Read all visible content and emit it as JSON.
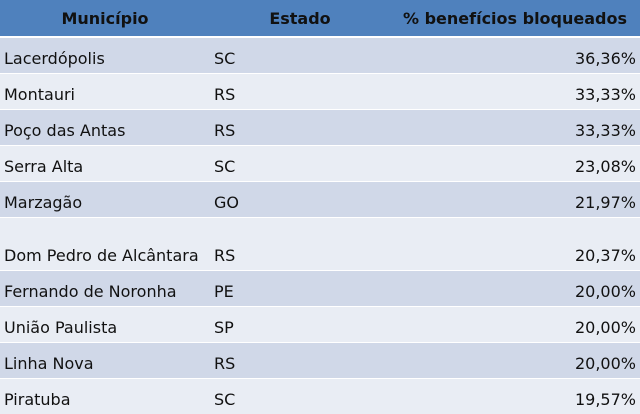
{
  "table": {
    "header": [
      "Município",
      "Estado",
      "% benefícios bloqueados"
    ],
    "rows": [
      [
        "Lacerdópolis",
        "SC",
        "36,36%"
      ],
      [
        "Montauri",
        "RS",
        "33,33%"
      ],
      [
        "Poço das Antas",
        "RS",
        "33,33%"
      ],
      [
        "Serra Alta",
        "SC",
        "23,08%"
      ],
      [
        "Marzagão",
        "GO",
        "21,97%"
      ],
      [
        "Dom Pedro de Alcântara",
        "RS",
        "20,37%"
      ],
      [
        "Fernando de Noronha",
        "PE",
        "20,00%"
      ],
      [
        "União Paulista",
        "SP",
        "20,00%"
      ],
      [
        "Linha Nova",
        "RS",
        "20,00%"
      ],
      [
        "Piratuba",
        "SC",
        "19,57%"
      ]
    ]
  }
}
